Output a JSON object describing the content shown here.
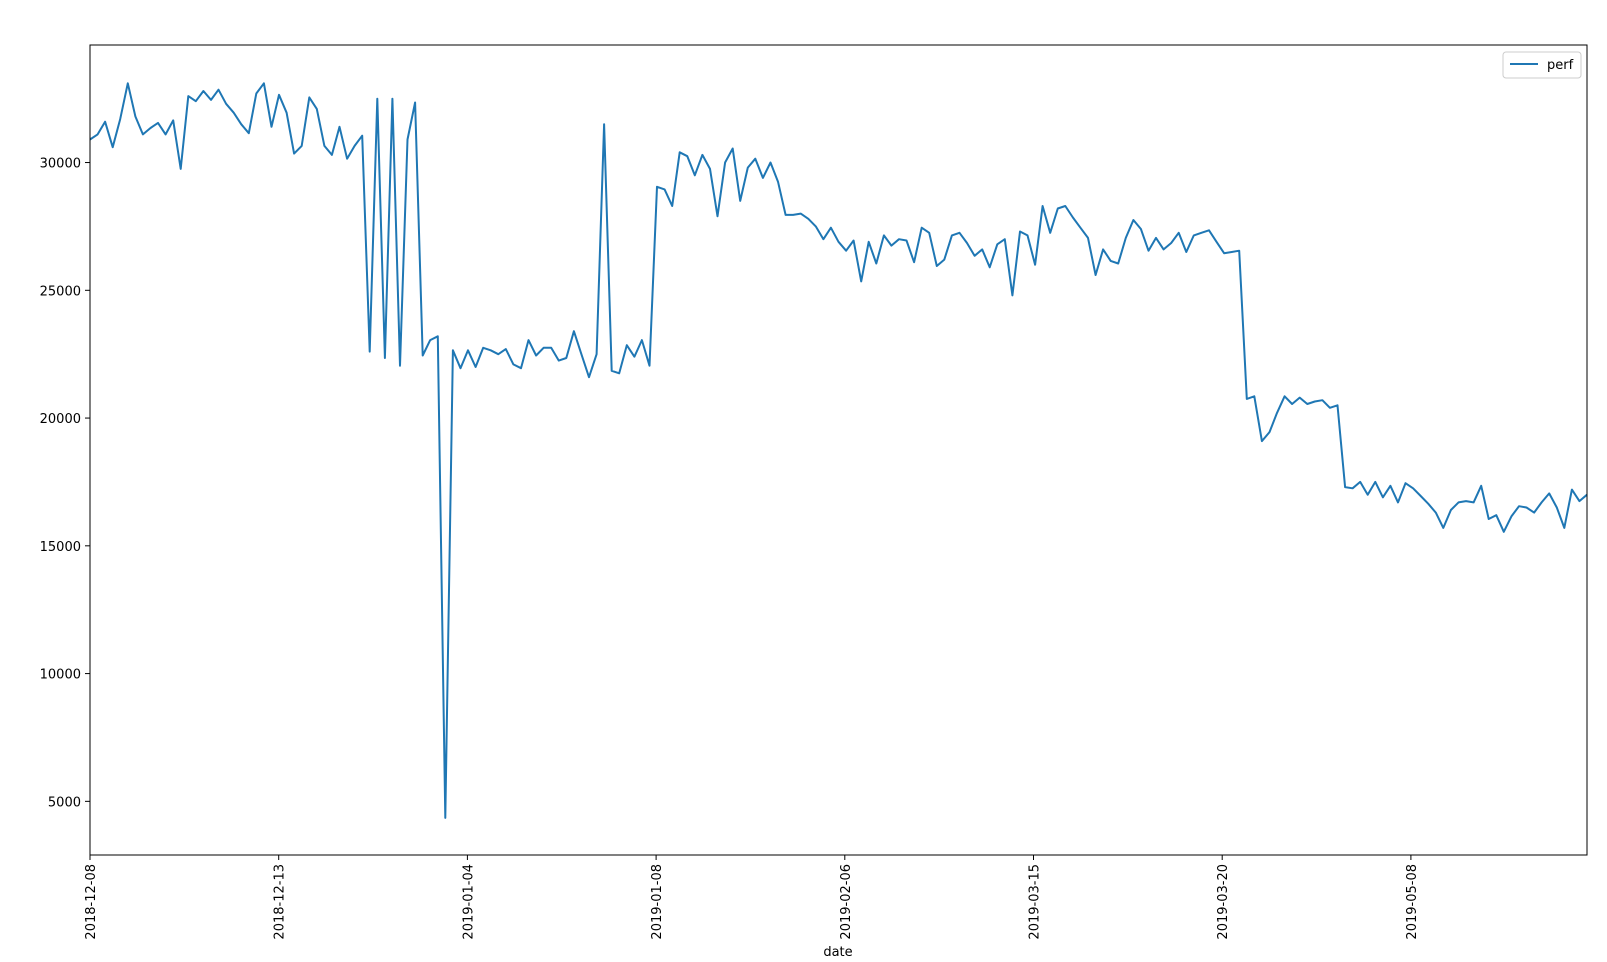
{
  "chart_data": {
    "type": "line",
    "xlabel": "date",
    "ylabel": "",
    "ylim": [
      2900,
      34600
    ],
    "y_ticks": [
      5000,
      10000,
      15000,
      20000,
      25000,
      30000
    ],
    "x_tick_labels": [
      "2018-12-08",
      "2018-12-13",
      "2019-01-04",
      "2019-01-08",
      "2019-02-06",
      "2019-03-15",
      "2019-03-20",
      "2019-05-08"
    ],
    "grid": false,
    "legend": {
      "position": "top-right",
      "entries": [
        "perf"
      ]
    },
    "series": [
      {
        "name": "perf",
        "color": "#1f77b4",
        "values": [
          30900,
          31100,
          31600,
          30600,
          31700,
          33100,
          31800,
          31100,
          31350,
          31550,
          31100,
          31650,
          29750,
          32600,
          32400,
          32800,
          32450,
          32850,
          32300,
          31950,
          31500,
          31150,
          32700,
          33100,
          31400,
          32650,
          31950,
          30350,
          30650,
          32550,
          32100,
          30650,
          30300,
          31400,
          30150,
          30650,
          31050,
          22600,
          32500,
          22350,
          32500,
          22050,
          30900,
          32350,
          22450,
          23050,
          23200,
          4350,
          22650,
          21950,
          22650,
          22000,
          22750,
          22650,
          22500,
          22700,
          22100,
          21950,
          23050,
          22450,
          22750,
          22750,
          22250,
          22350,
          23400,
          22500,
          21600,
          22500,
          31500,
          21850,
          21750,
          22850,
          22400,
          23050,
          22050,
          29050,
          28950,
          28300,
          30400,
          30250,
          29500,
          30300,
          29750,
          27900,
          30000,
          30550,
          28500,
          29800,
          30150,
          29400,
          30000,
          29250,
          27950,
          27950,
          28000,
          27800,
          27500,
          27000,
          27450,
          26900,
          26550,
          26950,
          25350,
          26900,
          26050,
          27150,
          26750,
          27000,
          26950,
          26100,
          27450,
          27250,
          25950,
          26200,
          27150,
          27250,
          26850,
          26350,
          26600,
          25900,
          26800,
          27000,
          24800,
          27300,
          27150,
          26000,
          28300,
          27250,
          28200,
          28300,
          27850,
          27450,
          27050,
          25600,
          26600,
          26150,
          26050,
          27050,
          27750,
          27400,
          26550,
          27050,
          26600,
          26850,
          27250,
          26500,
          27150,
          27250,
          27350,
          26900,
          26450,
          26500,
          26550,
          20750,
          20850,
          19100,
          19450,
          20200,
          20850,
          20550,
          20800,
          20550,
          20650,
          20700,
          20400,
          20500,
          17300,
          17250,
          17500,
          17000,
          17500,
          16900,
          17350,
          16700,
          17450,
          17250,
          16950,
          16650,
          16300,
          15700,
          16400,
          16700,
          16750,
          16700,
          17350,
          16050,
          16200,
          15550,
          16150,
          16550,
          16500,
          16300,
          16700,
          17050,
          16500,
          15700,
          17200,
          16750,
          17000
        ]
      }
    ]
  }
}
